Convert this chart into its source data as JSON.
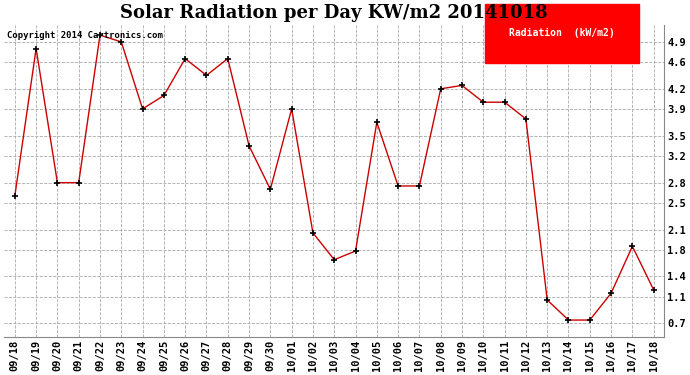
{
  "title": "Solar Radiation per Day KW/m2 20141018",
  "copyright_text": "Copyright 2014 Cartronics.com",
  "legend_label": "Radiation  (kW/m2)",
  "x_labels": [
    "09/18",
    "09/19",
    "09/20",
    "09/21",
    "09/22",
    "09/23",
    "09/24",
    "09/25",
    "09/26",
    "09/27",
    "09/28",
    "09/29",
    "09/30",
    "10/01",
    "10/02",
    "10/03",
    "10/04",
    "10/05",
    "10/06",
    "10/07",
    "10/08",
    "10/09",
    "10/10",
    "10/11",
    "10/12",
    "10/13",
    "10/14",
    "10/15",
    "10/16",
    "10/17",
    "10/18"
  ],
  "y_values": [
    2.6,
    4.8,
    2.8,
    2.8,
    5.0,
    4.9,
    3.9,
    4.1,
    4.65,
    4.4,
    4.65,
    3.35,
    2.7,
    3.9,
    2.05,
    1.65,
    1.78,
    3.7,
    2.75,
    2.75,
    4.2,
    4.25,
    4.0,
    4.0,
    3.75,
    1.05,
    0.75,
    0.75,
    1.15,
    1.85,
    1.2
  ],
  "y_ticks": [
    0.7,
    1.1,
    1.4,
    1.8,
    2.1,
    2.5,
    2.8,
    3.2,
    3.5,
    3.9,
    4.2,
    4.6,
    4.9
  ],
  "line_color": "#cc0000",
  "marker_color": "#000000",
  "bg_color": "#ffffff",
  "grid_color": "#aaaaaa",
  "legend_bg": "#ff0000",
  "legend_text_color": "#ffffff",
  "title_fontsize": 13,
  "tick_fontsize": 7.5,
  "copyright_fontsize": 6.5,
  "ylim_min": 0.5,
  "ylim_max": 5.15
}
